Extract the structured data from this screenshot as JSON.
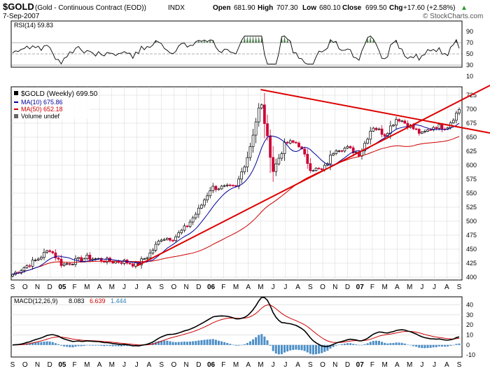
{
  "header": {
    "symbol": "$GOLD",
    "description": "(Gold - Continuous Contract (EOD))",
    "exchange": "INDX",
    "date": "7-Sep-2007",
    "open_label": "Open",
    "open": "681.90",
    "high_label": "High",
    "high": "707.30",
    "low_label": "Low",
    "low": "680.10",
    "close_label": "Close",
    "close": "699.50",
    "chg_label": "Chg",
    "chg": "+17.60 (+2.58%)",
    "up_arrow": "▲",
    "watermark": "© StockCharts.com"
  },
  "colors": {
    "price_up": "#000000",
    "price_down": "#cc0033",
    "ma10": "#000099",
    "ma50": "#cc0000",
    "trendline": "#dd0000",
    "macd_line": "#000000",
    "signal_line": "#cc0000",
    "histogram": "#4d8fc7",
    "rsi_fill": "#4f7a4f",
    "grid": "#d6d6d6"
  },
  "rsi_panel": {
    "label": "RSI(14) 59.83",
    "ticks": [
      "90",
      "70",
      "50",
      "30",
      "10"
    ]
  },
  "price_panel": {
    "legend_main": "$GOLD (Weekly) 699.50",
    "legend_ma10": "MA(10) 675.86",
    "legend_ma50": "MA(50) 652.18",
    "legend_volume": "Volume undef",
    "ticks": [
      "725",
      "700",
      "675",
      "650",
      "625",
      "600",
      "575",
      "550",
      "525",
      "500",
      "475",
      "450",
      "425",
      "400"
    ]
  },
  "macd_panel": {
    "label_prefix": "MACD(12,26,9)",
    "macd_value": "8.083",
    "signal_value": "6.639",
    "hist_value": "1.444",
    "ticks": [
      "40",
      "30",
      "20",
      "10",
      "0",
      "-10"
    ]
  },
  "x_axis": {
    "months": [
      "S",
      "O",
      "N",
      "D",
      "05",
      "F",
      "M",
      "A",
      "M",
      "J",
      "J",
      "A",
      "S",
      "O",
      "N",
      "D",
      "06",
      "F",
      "M",
      "A",
      "M",
      "J",
      "J",
      "A",
      "S",
      "O",
      "N",
      "D",
      "07",
      "F",
      "M",
      "A",
      "M",
      "J",
      "J",
      "A",
      "S"
    ]
  },
  "chart_data": {
    "type": "candlestick",
    "title": "$GOLD (Gold - Continuous Contract (EOD)) Weekly",
    "x_range": [
      "Sep 2004",
      "Sep 2007"
    ],
    "ylim": [
      395,
      740
    ],
    "last_close": 699.5,
    "trend_points_weekly_close": [
      [
        "2004-09",
        405
      ],
      [
        "2004-11",
        432
      ],
      [
        "2004-12",
        450
      ],
      [
        "2005-01",
        422
      ],
      [
        "2005-03",
        435
      ],
      [
        "2005-05",
        428
      ],
      [
        "2005-06",
        428
      ],
      [
        "2005-07",
        422
      ],
      [
        "2005-08",
        440
      ],
      [
        "2005-09",
        470
      ],
      [
        "2005-10",
        470
      ],
      [
        "2005-11",
        490
      ],
      [
        "2005-12",
        520
      ],
      [
        "2006-01",
        560
      ],
      [
        "2006-02",
        560
      ],
      [
        "2006-03",
        560
      ],
      [
        "2006-04",
        620
      ],
      [
        "2006-05",
        715
      ],
      [
        "2006-06",
        590
      ],
      [
        "2006-07",
        640
      ],
      [
        "2006-08",
        640
      ],
      [
        "2006-09",
        595
      ],
      [
        "2006-10",
        590
      ],
      [
        "2006-11",
        630
      ],
      [
        "2006-12",
        630
      ],
      [
        "2007-01",
        620
      ],
      [
        "2007-02",
        670
      ],
      [
        "2007-03",
        655
      ],
      [
        "2007-04",
        685
      ],
      [
        "2007-05",
        670
      ],
      [
        "2007-06",
        655
      ],
      [
        "2007-07",
        670
      ],
      [
        "2007-08",
        668
      ],
      [
        "2007-09",
        699.5
      ]
    ],
    "indicators": {
      "ma10_last": 675.86,
      "ma50_last": 652.18,
      "rsi14_last": 59.83,
      "macd_last": 8.083,
      "signal_last": 6.639,
      "histogram_last": 1.444,
      "macd_ylim": [
        -12,
        48
      ]
    },
    "trendlines": [
      {
        "name": "resistance",
        "from": [
          "2006-05",
          735
        ],
        "to": [
          "2007-09",
          680
        ]
      },
      {
        "name": "support",
        "from": [
          "2005-07",
          420
        ],
        "to": [
          "2007-09",
          705
        ]
      }
    ]
  }
}
